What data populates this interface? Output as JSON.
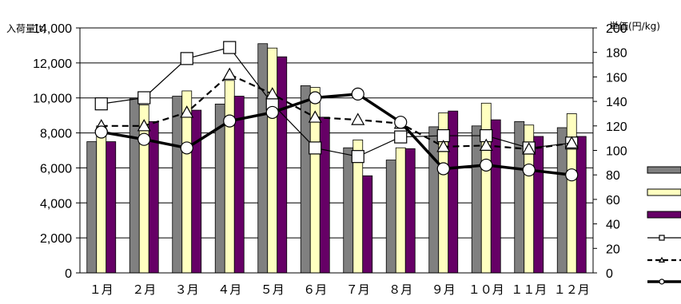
{
  "chart_data": {
    "type": "bar",
    "title": "",
    "ylabel": "入荷量(t)",
    "y2label": "単価(円/kg)",
    "ylim": [
      0,
      14000
    ],
    "y2lim": [
      0,
      200
    ],
    "yticks": [
      "0",
      "2,000",
      "4,000",
      "6,000",
      "8,000",
      "10,000",
      "12,000",
      "14,000"
    ],
    "y2ticks": [
      "0",
      "20",
      "40",
      "60",
      "80",
      "100",
      "120",
      "140",
      "160",
      "180",
      "200"
    ],
    "categories": [
      "１月",
      "２月",
      "３月",
      "４月",
      "５月",
      "６月",
      "７月",
      "８月",
      "９月",
      "１０月",
      "１１月",
      "１２月"
    ],
    "grid": true,
    "legend": "right (line samples only, no text)",
    "series": [
      {
        "kind": "bar",
        "axis": "left",
        "color": "#808080",
        "values": [
          7500,
          9950,
          10100,
          9650,
          13100,
          10700,
          7150,
          6450,
          8350,
          8400,
          8650,
          8300
        ]
      },
      {
        "kind": "bar",
        "axis": "left",
        "color": "#ffffc0",
        "values": [
          8400,
          9600,
          10400,
          11000,
          12850,
          10600,
          7600,
          7150,
          9150,
          9700,
          8450,
          9100
        ]
      },
      {
        "kind": "bar",
        "axis": "left",
        "color": "#660066",
        "values": [
          7500,
          8650,
          9300,
          10100,
          12350,
          8900,
          5550,
          7100,
          9250,
          8750,
          7800,
          7800
        ]
      },
      {
        "kind": "line",
        "axis": "right",
        "marker": "square",
        "style": "solid-thin",
        "values": [
          138,
          143,
          175,
          184,
          138,
          102,
          95,
          111,
          112,
          112,
          102,
          106
        ]
      },
      {
        "kind": "line",
        "axis": "right",
        "marker": "triangle",
        "style": "dashed",
        "values": [
          120,
          120,
          131,
          162,
          146,
          127,
          125,
          122,
          103,
          104,
          101,
          106
        ]
      },
      {
        "kind": "line",
        "axis": "right",
        "marker": "circle",
        "style": "solid-thick",
        "values": [
          115,
          109,
          102,
          124,
          131,
          143,
          146,
          123,
          85,
          88,
          84,
          80
        ]
      }
    ]
  }
}
